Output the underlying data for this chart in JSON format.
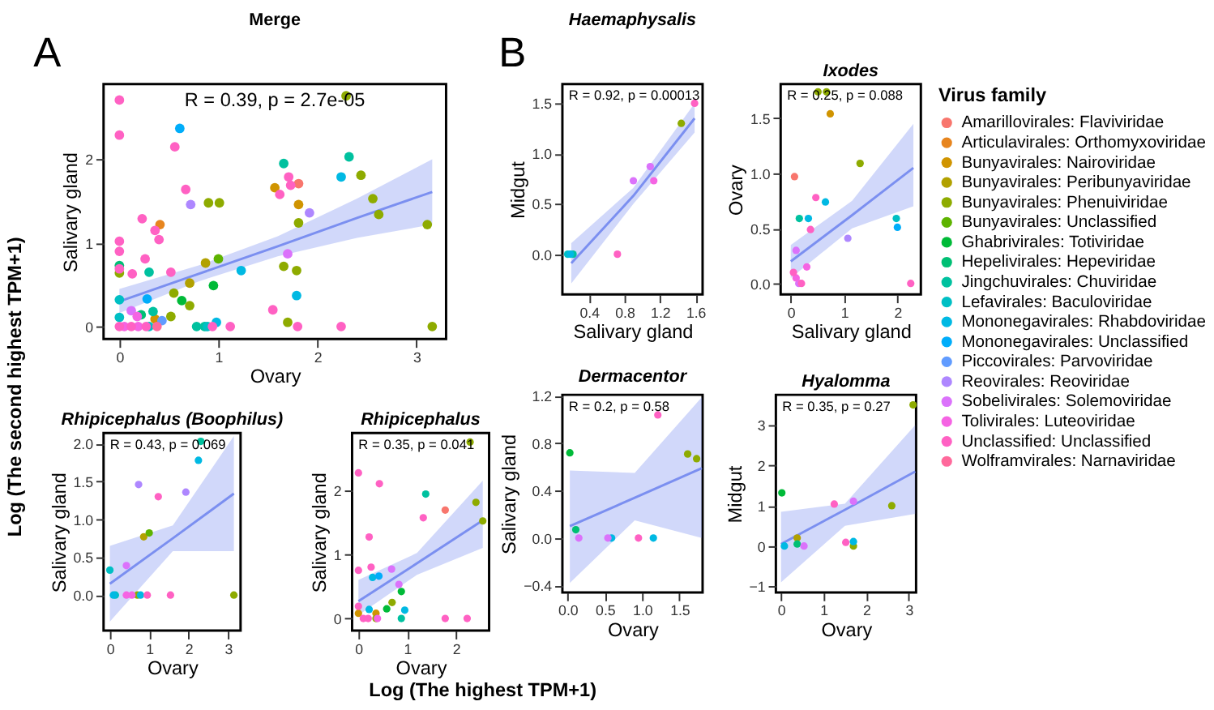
{
  "chart_data": [
    {
      "type": "scatter",
      "title": "Merge",
      "xlabel": "Ovary",
      "ylabel": "Salivary gland",
      "legend_title": "Virus family",
      "legend": "right",
      "grid": false,
      "marker": "circle",
      "xlim": [
        -0.16,
        3.3
      ],
      "ylim": [
        -0.15,
        2.9
      ],
      "xticks": [
        0,
        1,
        2,
        3
      ],
      "yticks": [
        0,
        1,
        2
      ],
      "annotations": [
        "R = 0.39, p = 2.7e-05",
        "A",
        "Log (The second highest TPM+1)",
        "Log (The highest TPM+1)"
      ],
      "series": [
        {
          "name": "Amarillovirales: Flaviviridae",
          "color": "#F8766D",
          "x": [
            1.81
          ],
          "values": [
            1.71
          ]
        },
        {
          "name": "Articulavirales: Orthomyxoviridae",
          "color": "#E7851E",
          "x": [
            0.41
          ],
          "values": [
            1.22
          ]
        },
        {
          "name": "Bunyavirales: Nairoviridae",
          "color": "#D09400",
          "x": [
            1.57,
            1.81,
            0.36
          ],
          "values": [
            1.66,
            1.46,
            0.09
          ]
        },
        {
          "name": "Bunyavirales: Peribunyaviridae",
          "color": "#B2A100",
          "x": [
            0.87,
            0.71
          ],
          "values": [
            0.76,
            0.52
          ]
        },
        {
          "name": "Bunyavirales: Phenuiviridae",
          "color": "#8EAB00",
          "x": [
            2.29,
            2.44,
            0.9,
            1.01,
            1.81,
            3.11,
            2.56,
            2.62,
            1.66,
            1.79,
            0,
            0.55,
            0.71,
            0.52,
            1.7,
            3.16
          ],
          "values": [
            2.76,
            1.81,
            1.48,
            1.48,
            1.24,
            1.22,
            1.53,
            1.34,
            0.72,
            0.67,
            0.64,
            0.4,
            0.25,
            0.12,
            0.05,
            0
          ]
        },
        {
          "name": "Bunyavirales: Unclassified",
          "color": "#5EB300",
          "x": [
            1.0
          ],
          "values": [
            0.81
          ]
        },
        {
          "name": "Ghabrivirales: Totiviridae",
          "color": "#00BA38",
          "x": [
            0.95,
            0.63
          ],
          "values": [
            0.49,
            0.31
          ]
        },
        {
          "name": "Hepelivirales: Hepeviridae",
          "color": "#00BF74",
          "x": [
            0,
            0.22
          ],
          "values": [
            0.73,
            0.14
          ]
        },
        {
          "name": "Jingchuvirales: Chuviridae",
          "color": "#00C19F",
          "x": [
            1.66,
            2.32,
            0.3,
            0.34,
            0.78,
            0.86
          ],
          "values": [
            1.95,
            2.03,
            0.65,
            0.18,
            0,
            0
          ]
        },
        {
          "name": "Lefavirales: Baculoviridae",
          "color": "#00BFC4",
          "x": [
            0,
            0,
            0.89,
            0.3
          ],
          "values": [
            0.32,
            0.11,
            0,
            0
          ]
        },
        {
          "name": "Mononegavirales: Rhabdoviridae",
          "color": "#00B9E3",
          "x": [
            2.24,
            1.23,
            1.79,
            0.98
          ],
          "values": [
            1.79,
            0.67,
            0.37,
            0.05
          ]
        },
        {
          "name": "Mononegavirales: Unclassified",
          "color": "#00ADFA",
          "x": [
            0.61,
            0.28
          ],
          "values": [
            2.37,
            0.33
          ]
        },
        {
          "name": "Piccovirales: Parvoviridae",
          "color": "#619CFF",
          "x": [
            0.43
          ],
          "values": [
            0.07
          ]
        },
        {
          "name": "Reovirales: Reoviridae",
          "color": "#AE87FF",
          "x": [
            0.72,
            1.92
          ],
          "values": [
            1.46,
            1.36
          ]
        },
        {
          "name": "Sobelivirales: Solemoviridae",
          "color": "#DB72FB",
          "x": [
            1.7,
            0.12
          ],
          "values": [
            0.87,
            0.19
          ]
        },
        {
          "name": "Tolivirales: Luteoviridae",
          "color": "#F564E3",
          "x": [
            0.18,
            0.05,
            0.19
          ],
          "values": [
            0.12,
            0,
            0
          ]
        },
        {
          "name": "Unclassified: Unclassified",
          "color": "#FF61C3",
          "x": [
            0,
            0,
            0.56,
            1.71,
            1.73,
            1.62,
            0.67,
            0.23,
            0.36,
            0.4,
            0,
            0,
            0.26,
            0,
            0.13,
            0.52,
            1.55,
            0,
            0.12,
            0.27,
            0.94,
            1.12,
            1.8,
            2.24
          ],
          "values": [
            2.71,
            2.29,
            2.15,
            1.79,
            1.69,
            1.58,
            1.64,
            1.29,
            1.15,
            1.04,
            1.02,
            0.9,
            0.81,
            0.69,
            0.63,
            0.65,
            0.2,
            0,
            0,
            0,
            0,
            0,
            0,
            0
          ]
        },
        {
          "name": "Wolframvirales: Narnaviridae",
          "color": "#FF699C",
          "x": [
            0.38
          ],
          "values": [
            0
          ]
        },
        {
          "type": "line",
          "marker": "none",
          "line_style": "solid",
          "color": "#7B8FF0",
          "x": [
            0,
            0.8,
            1.6,
            2.4,
            3.16
          ],
          "values": [
            0.3,
            0.63,
            0.96,
            1.3,
            1.61
          ],
          "lower": [
            0.16,
            0.54,
            0.84,
            1.06,
            1.22
          ],
          "upper": [
            0.45,
            0.73,
            1.08,
            1.53,
            2.0
          ]
        }
      ]
    },
    {
      "type": "scatter",
      "title": "Haemaphysalis",
      "xlabel": "Salivary gland",
      "ylabel": "Midgut",
      "grid": false,
      "marker": "circle",
      "xlim": [
        0.1,
        1.68
      ],
      "ylim": [
        -0.4,
        1.69
      ],
      "xticks": [
        0.4,
        0.8,
        1.2,
        1.6
      ],
      "yticks": [
        {
          "value": 0,
          "label": "0.0"
        },
        0.5,
        {
          "value": 1,
          "label": "1.0"
        },
        1.5
      ],
      "annotations": [
        "R = 0.92, p = 0.00013",
        "B"
      ],
      "series": [
        {
          "name": "Bunyavirales: Phenuiviridae",
          "color": "#8EAB00",
          "x": [
            1.44
          ],
          "values": [
            1.3
          ]
        },
        {
          "name": "Jingchuvirales: Chuviridae",
          "color": "#00C19F",
          "x": [
            0.22
          ],
          "values": [
            0
          ]
        },
        {
          "name": "Lefavirales: Baculoviridae",
          "color": "#00BFC4",
          "x": [
            0.16
          ],
          "values": [
            0
          ]
        },
        {
          "name": "Mononegavirales: Rhabdoviridae",
          "color": "#00B9E3",
          "x": [
            0.19
          ],
          "values": [
            0
          ]
        },
        {
          "name": "Sobelivirales: Solemoviridae",
          "color": "#DB72FB",
          "x": [
            0.9,
            1.09
          ],
          "values": [
            0.73,
            0.87
          ]
        },
        {
          "name": "Tolivirales: Luteoviridae",
          "color": "#F564E3",
          "x": [
            1.13
          ],
          "values": [
            0.73
          ]
        },
        {
          "name": "Unclassified: Unclassified",
          "color": "#FF61C3",
          "x": [
            0.72,
            1.59
          ],
          "values": [
            0,
            1.5
          ]
        },
        {
          "type": "line",
          "marker": "none",
          "line_style": "solid",
          "color": "#7B8FF0",
          "x": [
            0.2,
            0.9,
            1.59
          ],
          "values": [
            -0.09,
            0.58,
            1.35
          ],
          "lower": [
            -0.29,
            0.5,
            1.21
          ],
          "upper": [
            0.11,
            0.66,
            1.5
          ]
        }
      ]
    },
    {
      "type": "scatter",
      "title": "Ixodes",
      "xlabel": "Salivary gland",
      "ylabel": "Ovary",
      "grid": false,
      "marker": "circle",
      "xlim": [
        -0.19,
        2.44
      ],
      "ylim": [
        -0.1,
        1.81
      ],
      "xticks": [
        0,
        1,
        2
      ],
      "yticks": [
        {
          "value": 0,
          "label": "0.0"
        },
        0.5,
        {
          "value": 1,
          "label": "1.0"
        },
        1.5
      ],
      "annotations": [
        "R = 0.25, p = 0.088"
      ],
      "series": [
        {
          "name": "Amarillovirales: Flaviviridae",
          "color": "#F8766D",
          "x": [
            0.07
          ],
          "values": [
            0.97
          ]
        },
        {
          "name": "Bunyavirales: Nairoviridae",
          "color": "#D09400",
          "x": [
            0.74
          ],
          "values": [
            1.54
          ]
        },
        {
          "name": "Bunyavirales: Phenuiviridae",
          "color": "#8EAB00",
          "x": [
            0.51,
            0.67,
            1.3
          ],
          "values": [
            1.74,
            1.74,
            1.09
          ]
        },
        {
          "name": "Jingchuvirales: Chuviridae",
          "color": "#00C19F",
          "x": [
            0.16
          ],
          "values": [
            0.59
          ]
        },
        {
          "name": "Lefavirales: Baculoviridae",
          "color": "#00BFC4",
          "x": [
            1.98
          ],
          "values": [
            0.59
          ]
        },
        {
          "name": "Mononegavirales: Rhabdoviridae",
          "color": "#00B9E3",
          "x": [
            0.65,
            0.33
          ],
          "values": [
            0.74,
            0.59
          ]
        },
        {
          "name": "Mononegavirales: Unclassified",
          "color": "#00ADFA",
          "x": [
            2.0
          ],
          "values": [
            0.51
          ]
        },
        {
          "name": "Reovirales: Reoviridae",
          "color": "#AE87FF",
          "x": [
            1.07
          ],
          "values": [
            0.41
          ]
        },
        {
          "name": "Sobelivirales: Solemoviridae",
          "color": "#DB72FB",
          "x": [
            0.1,
            0.15
          ],
          "values": [
            0.3,
            0
          ]
        },
        {
          "name": "Tolivirales: Luteoviridae",
          "color": "#F564E3",
          "x": [
            0.1,
            0.3
          ],
          "values": [
            0.05,
            0.15
          ]
        },
        {
          "name": "Unclassified: Unclassified",
          "color": "#FF61C3",
          "x": [
            0.47,
            0.37,
            2.25,
            0.05,
            0.2
          ],
          "values": [
            0.78,
            0.49,
            0,
            0.1,
            0
          ]
        },
        {
          "type": "line",
          "marker": "none",
          "line_style": "solid",
          "color": "#7B8FF0",
          "x": [
            0,
            1.15,
            2.3
          ],
          "values": [
            0.2,
            0.62,
            1.05
          ],
          "lower": [
            0.05,
            0.5,
            0.7
          ],
          "upper": [
            0.35,
            0.75,
            1.45
          ]
        }
      ]
    },
    {
      "type": "scatter",
      "title": "Rhipicephalus (Boophilus)",
      "xlabel": "Ovary",
      "ylabel": "Salivary gland",
      "grid": false,
      "marker": "circle",
      "xlim": [
        -0.16,
        3.32
      ],
      "ylim": [
        -0.47,
        2.14
      ],
      "xticks": [
        0,
        1,
        2,
        3
      ],
      "yticks": [
        {
          "value": 0,
          "label": "0.0"
        },
        0.5,
        {
          "value": 1,
          "label": "1.0"
        },
        1.5,
        {
          "value": 2,
          "label": "2.0"
        }
      ],
      "annotations": [
        "R = 0.43, p = 0.069"
      ],
      "series": [
        {
          "name": "Bunyavirales: Peribunyaviridae",
          "color": "#B2A100",
          "x": [
            0.86
          ],
          "values": [
            0.77
          ]
        },
        {
          "name": "Bunyavirales: Phenuiviridae",
          "color": "#8EAB00",
          "x": [
            0.7,
            3.15
          ],
          "values": [
            0,
            0
          ]
        },
        {
          "name": "Bunyavirales: Unclassified",
          "color": "#5EB300",
          "x": [
            1.0
          ],
          "values": [
            0.82
          ]
        },
        {
          "name": "Jingchuvirales: Chuviridae",
          "color": "#00C19F",
          "x": [
            2.31
          ],
          "values": [
            2.03
          ]
        },
        {
          "name": "Lefavirales: Baculoviridae",
          "color": "#00BFC4",
          "x": [
            0,
            0.14
          ],
          "values": [
            0.33,
            0
          ]
        },
        {
          "name": "Mononegavirales: Rhabdoviridae",
          "color": "#00B9E3",
          "x": [
            0.09,
            0.78,
            2.25
          ],
          "values": [
            0,
            0,
            1.78
          ]
        },
        {
          "name": "Reovirales: Reoviridae",
          "color": "#AE87FF",
          "x": [
            0.73,
            1.93
          ],
          "values": [
            1.46,
            1.36
          ]
        },
        {
          "name": "Sobelivirales: Solemoviridae",
          "color": "#DB72FB",
          "x": [
            0.42
          ],
          "values": [
            0.39
          ]
        },
        {
          "name": "Tolivirales: Luteoviridae",
          "color": "#F564E3",
          "x": [
            0.42,
            0.56
          ],
          "values": [
            0,
            0
          ]
        },
        {
          "name": "Unclassified: Unclassified",
          "color": "#FF61C3",
          "x": [
            0.95,
            1.54,
            1.23
          ],
          "values": [
            0,
            0,
            1.3
          ]
        },
        {
          "type": "line",
          "marker": "none",
          "line_style": "solid",
          "color": "#7B8FF0",
          "x": [
            0,
            1.6,
            3.15
          ],
          "values": [
            0.15,
            0.75,
            1.34
          ],
          "lower": [
            -0.35,
            0.58,
            0.58
          ],
          "upper": [
            0.65,
            0.92,
            2.1
          ]
        }
      ]
    },
    {
      "type": "scatter",
      "title": "Rhipicephalus",
      "xlabel": "Ovary",
      "ylabel": "Salivary gland",
      "grid": false,
      "marker": "circle",
      "xlim": [
        -0.13,
        2.68
      ],
      "ylim": [
        -0.19,
        2.89
      ],
      "xticks": [
        0,
        1,
        2
      ],
      "yticks": [
        0,
        1,
        2
      ],
      "annotations": [
        "R = 0.35, p = 0.041"
      ],
      "series": [
        {
          "name": "Amarillovirales: Flaviviridae",
          "color": "#F8766D",
          "x": [
            1.78
          ],
          "values": [
            1.69
          ]
        },
        {
          "name": "Bunyavirales: Nairoviridae",
          "color": "#D09400",
          "x": [
            0,
            0.36
          ],
          "values": [
            0.08,
            0.08
          ]
        },
        {
          "name": "Bunyavirales: Phenuiviridae",
          "color": "#8EAB00",
          "x": [
            2.29,
            2.41,
            2.55,
            0.69,
            0.36
          ],
          "values": [
            2.75,
            1.81,
            1.52,
            0.25,
            0
          ]
        },
        {
          "name": "Ghabrivirales: Totiviridae",
          "color": "#00BA38",
          "x": [
            0.88,
            0.58
          ],
          "values": [
            0.42,
            0.15
          ]
        },
        {
          "name": "Jingchuvirales: Chuviridae",
          "color": "#00C19F",
          "x": [
            1.38,
            0.88
          ],
          "values": [
            1.94,
            0
          ]
        },
        {
          "name": "Mononegavirales: Rhabdoviridae",
          "color": "#00B9E3",
          "x": [
            0.29,
            0.95,
            0.22
          ],
          "values": [
            0.64,
            0.13,
            0.14
          ]
        },
        {
          "name": "Mononegavirales: Unclassified",
          "color": "#00ADFA",
          "x": [
            0.42
          ],
          "values": [
            0.66
          ]
        },
        {
          "name": "Sobelivirales: Solemoviridae",
          "color": "#DB72FB",
          "x": [
            0.68,
            0.83
          ],
          "values": [
            0.77,
            0.53
          ]
        },
        {
          "name": "Tolivirales: Luteoviridae",
          "color": "#F564E3",
          "x": [
            0.39
          ],
          "values": [
            0
          ]
        },
        {
          "name": "Unclassified: Unclassified",
          "color": "#FF61C3",
          "x": [
            0,
            0.43,
            1.33,
            0.22,
            0.26,
            0,
            0,
            0.1,
            0.2,
            1.78,
            2.23
          ],
          "values": [
            2.27,
            2.1,
            1.57,
            1.27,
            0.8,
            0.75,
            0.19,
            0,
            0,
            0,
            0
          ]
        },
        {
          "type": "line",
          "marker": "none",
          "line_style": "solid",
          "color": "#7B8FF0",
          "x": [
            0,
            1.2,
            2.55
          ],
          "values": [
            0.27,
            0.86,
            1.53
          ],
          "lower": [
            0.05,
            0.68,
            1.1
          ],
          "upper": [
            0.6,
            1.02,
            2.15
          ]
        }
      ]
    },
    {
      "type": "scatter",
      "title": "Dermacentor",
      "xlabel": "Ovary",
      "ylabel": "Salivary gland",
      "grid": false,
      "marker": "circle",
      "xlim": [
        -0.07,
        1.81
      ],
      "ylim": [
        -0.46,
        1.21
      ],
      "xticks": [
        {
          "value": 0,
          "label": "0.0"
        },
        0.5,
        {
          "value": 1,
          "label": "1.0"
        },
        1.5
      ],
      "yticks": [
        -0.4,
        {
          "value": 0,
          "label": "0.0"
        },
        0.4,
        0.8,
        1.2
      ],
      "annotations": [
        "R = 0.2, p = 0.58"
      ],
      "series": [
        {
          "name": "Bunyavirales: Phenuiviridae",
          "color": "#8EAB00",
          "x": [
            1.61,
            1.73
          ],
          "values": [
            0.71,
            0.67
          ]
        },
        {
          "name": "Ghabrivirales: Totiviridae",
          "color": "#00BA38",
          "x": [
            0.03
          ],
          "values": [
            0.72
          ]
        },
        {
          "name": "Hepelivirales: Hepeviridae",
          "color": "#00BF74",
          "x": [
            0.11
          ],
          "values": [
            0.07
          ]
        },
        {
          "name": "Mononegavirales: Rhabdoviridae",
          "color": "#00B9E3",
          "x": [
            0.59,
            1.15
          ],
          "values": [
            0,
            0
          ]
        },
        {
          "name": "Sobelivirales: Solemoviridae",
          "color": "#DB72FB",
          "x": [
            0.15,
            0.54
          ],
          "values": [
            0,
            0
          ]
        },
        {
          "name": "Unclassified: Unclassified",
          "color": "#FF61C3",
          "x": [
            1.21,
            0.95
          ],
          "values": [
            1.04,
            0
          ]
        },
        {
          "type": "line",
          "marker": "none",
          "line_style": "solid",
          "color": "#7B8FF0",
          "x": [
            0.03,
            0.9,
            1.8
          ],
          "values": [
            0.1,
            0.34,
            0.59
          ],
          "lower": [
            -0.38,
            0.15,
            0.0
          ],
          "upper": [
            0.57,
            0.55,
            1.19
          ]
        }
      ]
    },
    {
      "type": "scatter",
      "title": "Hyalomma",
      "xlabel": "Ovary",
      "ylabel": "Midgut",
      "grid": false,
      "marker": "circle",
      "xlim": [
        -0.12,
        3.17
      ],
      "ylim": [
        -1.15,
        3.75
      ],
      "xticks": [
        0,
        1,
        2,
        3
      ],
      "yticks": [
        -1,
        0,
        1,
        2,
        3
      ],
      "annotations": [
        "R = 0.35, p = 0.27"
      ],
      "series": [
        {
          "name": "Bunyavirales: Peribunyaviridae",
          "color": "#B2A100",
          "x": [
            0.38
          ],
          "values": [
            0.2
          ]
        },
        {
          "name": "Bunyavirales: Phenuiviridae",
          "color": "#8EAB00",
          "x": [
            3.1,
            2.6,
            1.7
          ],
          "values": [
            3.5,
            1.0,
            0
          ]
        },
        {
          "name": "Ghabrivirales: Totiviridae",
          "color": "#00BA38",
          "x": [
            0.02
          ],
          "values": [
            1.32
          ]
        },
        {
          "name": "Hepelivirales: Hepeviridae",
          "color": "#00BF74",
          "x": [
            0.38
          ],
          "values": [
            0.05
          ]
        },
        {
          "name": "Mononegavirales: Rhabdoviridae",
          "color": "#00B9E3",
          "x": [
            0.08,
            1.7
          ],
          "values": [
            0,
            0.11
          ]
        },
        {
          "name": "Sobelivirales: Solemoviridae",
          "color": "#DB72FB",
          "x": [
            1.7,
            0.54
          ],
          "values": [
            1.11,
            0
          ]
        },
        {
          "name": "Unclassified: Unclassified",
          "color": "#FF61C3",
          "x": [
            1.25,
            1.52
          ],
          "values": [
            1.04,
            0.09
          ]
        },
        {
          "type": "line",
          "marker": "none",
          "line_style": "solid",
          "color": "#7B8FF0",
          "x": [
            0,
            1.5,
            3.15
          ],
          "values": [
            0.05,
            0.9,
            1.85
          ],
          "lower": [
            -0.9,
            0.5,
            0.8
          ],
          "upper": [
            0.85,
            1.05,
            3.0
          ]
        }
      ]
    }
  ]
}
